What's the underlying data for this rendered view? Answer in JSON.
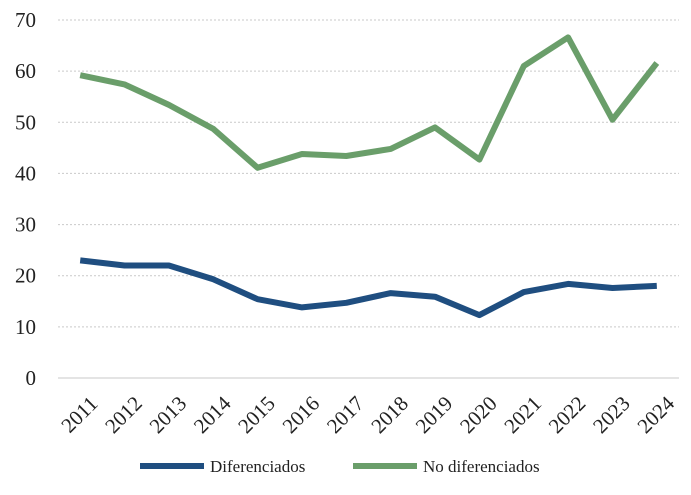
{
  "chart_data": {
    "type": "line",
    "title": "",
    "xlabel": "",
    "ylabel": "",
    "x": [
      "2011",
      "2012",
      "2013",
      "2014",
      "2015",
      "2016",
      "2017",
      "2018",
      "2019",
      "2020",
      "2021",
      "2022",
      "2023",
      "2024"
    ],
    "ylim": [
      0,
      70
    ],
    "yticks": [
      0,
      10,
      20,
      30,
      40,
      50,
      60,
      70
    ],
    "grid": "horizontal dotted",
    "legend": "bottom",
    "series": [
      {
        "name": "Diferenciados",
        "color": "#1f4e80",
        "values": [
          23.0,
          22.0,
          22.0,
          19.3,
          15.4,
          13.8,
          14.7,
          16.6,
          15.9,
          12.3,
          16.8,
          18.4,
          17.6,
          18.0
        ]
      },
      {
        "name": "No diferenciados",
        "color": "#6a9e6a",
        "values": [
          59.2,
          57.4,
          53.4,
          48.7,
          41.1,
          43.8,
          43.4,
          44.8,
          49.0,
          42.7,
          61.0,
          66.6,
          50.5,
          61.6
        ]
      }
    ]
  }
}
